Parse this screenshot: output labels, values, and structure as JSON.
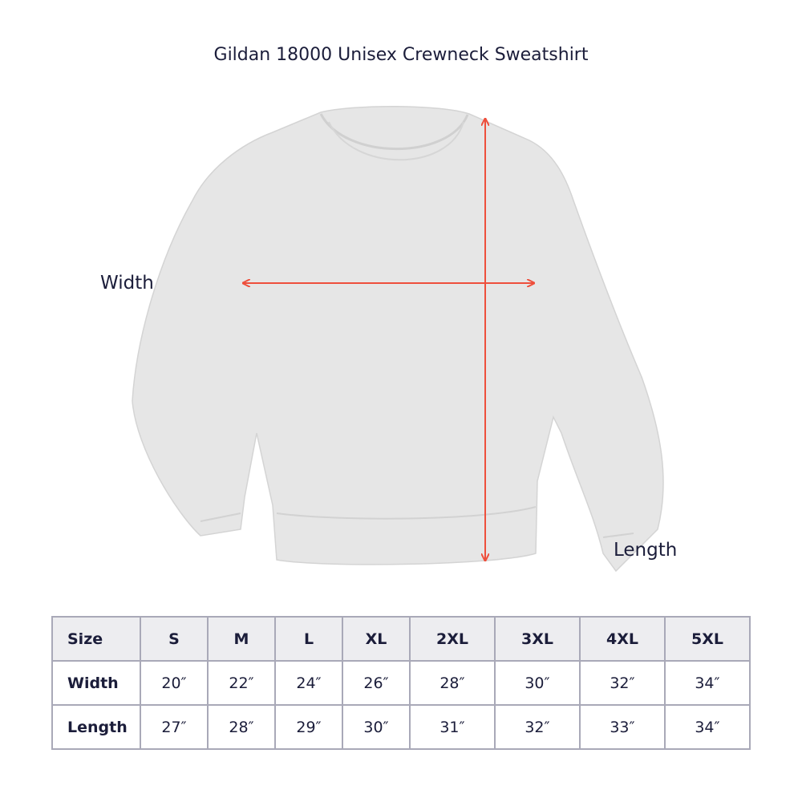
{
  "title": "Gildan 18000 Unisex Crewneck Sweatshirt",
  "labels": {
    "width": "Width",
    "length": "Length"
  },
  "colors": {
    "arrow": "#ee4f3c",
    "garment": "#e4e4e4",
    "header_bg": "#ededf0",
    "border": "#a9a9b8"
  },
  "table": {
    "header": [
      "Size",
      "S",
      "M",
      "L",
      "XL",
      "2XL",
      "3XL",
      "4XL",
      "5XL"
    ],
    "rows": [
      [
        "Width",
        "20″",
        "22″",
        "24″",
        "26″",
        "28″",
        "30″",
        "32″",
        "34″"
      ],
      [
        "Length",
        "27″",
        "28″",
        "29″",
        "30″",
        "31″",
        "32″",
        "33″",
        "34″"
      ]
    ]
  }
}
